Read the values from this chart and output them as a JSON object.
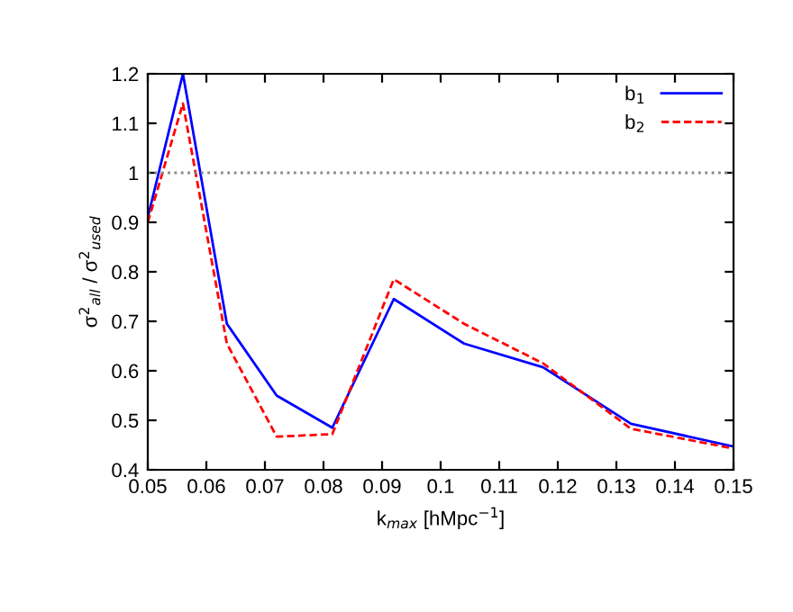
{
  "chart_data": {
    "type": "line",
    "xlabel": "k$_{max}$ [hMpc$^{−1}$]",
    "ylabel": "σ$^{2}$$_{all}$ / σ$^{2}$$_{used}$",
    "x": [
      0.05,
      0.056,
      0.0635,
      0.072,
      0.0815,
      0.092,
      0.104,
      0.1175,
      0.1325,
      0.15
    ],
    "series": [
      {
        "name": "b$_{1}$",
        "color": "#0000ff",
        "line_style": "solid",
        "values": [
          0.91,
          1.2,
          0.695,
          0.55,
          0.485,
          0.745,
          0.655,
          0.607,
          0.493,
          0.447
        ]
      },
      {
        "name": "b$_{2}$",
        "color": "#ff0000",
        "line_style": "dashed",
        "values": [
          0.9,
          1.14,
          0.655,
          0.467,
          0.472,
          0.785,
          0.695,
          0.615,
          0.483,
          0.443
        ]
      }
    ],
    "xlim": [
      0.05,
      0.15
    ],
    "xticks": [
      0.05,
      0.06,
      0.07,
      0.08,
      0.09,
      0.1,
      0.11,
      0.12,
      0.13,
      0.14,
      0.15
    ],
    "ylim": [
      0.4,
      1.2
    ],
    "yticks": [
      0.4,
      0.5,
      0.6,
      0.7,
      0.8,
      0.9,
      1,
      1.1,
      1.2
    ],
    "ref_lines": [
      {
        "axis": "y",
        "value": 1,
        "color": "#888888",
        "line_style": "dotted"
      }
    ],
    "legend": "top right",
    "grid": false
  }
}
